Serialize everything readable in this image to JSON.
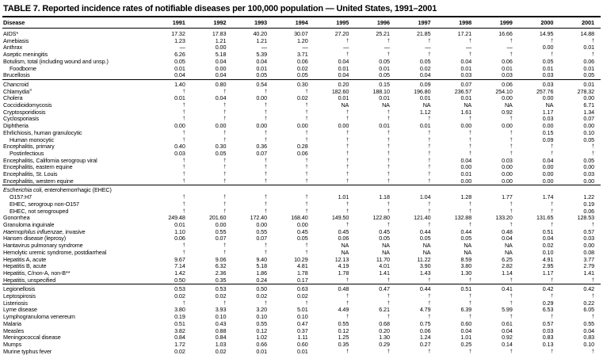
{
  "title": "TABLE 7. Reported incidence rates of notifiable diseases per 100,000 population — United States, 1991–2001",
  "columns": [
    "Disease",
    "1991",
    "1992",
    "1993",
    "1994",
    "1995",
    "1996",
    "1997",
    "1998",
    "1999",
    "2000",
    "2001"
  ],
  "symbols": {
    "not_notifiable": "†",
    "no_report": "—",
    "not_available": "NA"
  },
  "chart_data": {
    "type": "table",
    "title": "TABLE 7. Reported incidence rates of notifiable diseases per 100,000 population — United States, 1991–2001",
    "categories": [
      "1991",
      "1992",
      "1993",
      "1994",
      "1995",
      "1996",
      "1997",
      "1998",
      "1999",
      "2000",
      "2001"
    ]
  },
  "rows": [
    {
      "label": "AIDS*",
      "values": [
        "17.32",
        "17.83",
        "40.20",
        "30.07",
        "27.20",
        "25.21",
        "21.85",
        "17.21",
        "16.66",
        "14.95",
        "14.88"
      ]
    },
    {
      "label": "Amebiasis",
      "values": [
        "1.23",
        "1.21",
        "1.21",
        "1.20",
        "†",
        "†",
        "†",
        "†",
        "†",
        "†",
        "†"
      ]
    },
    {
      "label": "Anthrax",
      "values": [
        "—",
        "0.00",
        "—",
        "—",
        "—",
        "—",
        "—",
        "—",
        "—",
        "0.00",
        "0.01"
      ]
    },
    {
      "label": "Aseptic meningitis",
      "values": [
        "6.26",
        "5.18",
        "5.39",
        "3.71",
        "†",
        "†",
        "†",
        "†",
        "†",
        "†",
        "†"
      ]
    },
    {
      "label": "Botulism, total (including wound and unsp.)",
      "values": [
        "0.05",
        "0.04",
        "0.04",
        "0.06",
        "0.04",
        "0.05",
        "0.05",
        "0.04",
        "0.06",
        "0.05",
        "0.06"
      ]
    },
    {
      "label": "Foodborne",
      "indent": 1,
      "values": [
        "0.01",
        "0.00",
        "0.01",
        "0.02",
        "0.01",
        "0.01",
        "0.02",
        "0.01",
        "0.01",
        "0.01",
        "0.01"
      ]
    },
    {
      "label": "Brucellosis",
      "values": [
        "0.04",
        "0.04",
        "0.05",
        "0.05",
        "0.04",
        "0.05",
        "0.04",
        "0.03",
        "0.03",
        "0.03",
        "0.05"
      ]
    },
    {
      "label": "Chancroid",
      "rule": 1,
      "values": [
        "1.40",
        "0.80",
        "0.54",
        "0.30",
        "0.20",
        "0.15",
        "0.09",
        "0.07",
        "0.06",
        "0.03",
        "0.01"
      ]
    },
    {
      "label": "Chlamydia",
      "sup": "§",
      "values": [
        "†",
        "†",
        "†",
        "†",
        "182.60",
        "188.10",
        "196.80",
        "236.57",
        "254.10",
        "257.76",
        "278.32"
      ]
    },
    {
      "label": "Cholera",
      "values": [
        "0.01",
        "0.04",
        "0.00",
        "0.02",
        "0.01",
        "0.01",
        "0.01",
        "0.01",
        "0.00",
        "0.00",
        "0.00"
      ]
    },
    {
      "label": "Coccidioidomycosis",
      "values": [
        "†",
        "†",
        "†",
        "†",
        "NA",
        "NA",
        "NA",
        "NA",
        "NA",
        "NA",
        "6.71"
      ]
    },
    {
      "label": "Cryptosporidiosis",
      "values": [
        "†",
        "†",
        "†",
        "†",
        "†",
        "†",
        "1.12",
        "1.61",
        "0.92",
        "1.17",
        "1.34"
      ]
    },
    {
      "label": "Cyclosporiasis",
      "values": [
        "†",
        "†",
        "†",
        "†",
        "†",
        "†",
        "†",
        "†",
        "†",
        "0.03",
        "0.07"
      ]
    },
    {
      "label": "Diphtheria",
      "values": [
        "0.00",
        "0.00",
        "0.00",
        "0.00",
        "0.00",
        "0.01",
        "0.01",
        "0.00",
        "0.00",
        "0.00",
        "0.00"
      ]
    },
    {
      "label": "Ehrlichiosis, human granulocytic",
      "values": [
        "†",
        "†",
        "†",
        "†",
        "†",
        "†",
        "†",
        "†",
        "†",
        "0.15",
        "0.10"
      ]
    },
    {
      "label": "Human monocytic",
      "indent": 1,
      "values": [
        "†",
        "†",
        "†",
        "†",
        "†",
        "†",
        "†",
        "†",
        "†",
        "0.09",
        "0.05"
      ]
    },
    {
      "label": "Encephalitis, primary",
      "values": [
        "0.40",
        "0.30",
        "0.36",
        "0.28",
        "†",
        "†",
        "†",
        "†",
        "†",
        "†",
        "†"
      ]
    },
    {
      "label": "Postinfectious",
      "indent": 1,
      "values": [
        "0.03",
        "0.05",
        "0.07",
        "0.06",
        "†",
        "†",
        "†",
        "†",
        "†",
        "†",
        "†"
      ]
    },
    {
      "label": "Encephalitis, California serogroup viral",
      "values": [
        "†",
        "†",
        "†",
        "†",
        "†",
        "†",
        "†",
        "0.04",
        "0.03",
        "0.04",
        "0.05"
      ]
    },
    {
      "label": "Encephalitis, eastern equine",
      "values": [
        "†",
        "†",
        "†",
        "†",
        "†",
        "†",
        "†",
        "0.00",
        "0.00",
        "0.00",
        "0.00"
      ]
    },
    {
      "label": "Encephalitis, St. Louis",
      "values": [
        "†",
        "†",
        "†",
        "†",
        "†",
        "†",
        "†",
        "0.01",
        "0.00",
        "0.00",
        "0.03"
      ]
    },
    {
      "label": "Encephalitis, western equine",
      "values": [
        "†",
        "†",
        "†",
        "†",
        "†",
        "†",
        "†",
        "0.00",
        "0.00",
        "0.00",
        "0.00"
      ]
    },
    {
      "label": " enterohemorrhagic (EHEC)",
      "italic": "Escherichia coli,",
      "rule": 1,
      "values": [
        "",
        "",
        "",
        "",
        "",
        "",
        "",
        "",
        "",
        "",
        ""
      ]
    },
    {
      "label": "O157:H7",
      "indent": 1,
      "values": [
        "†",
        "†",
        "†",
        "†",
        "1.01",
        "1.18",
        "1.04",
        "1.28",
        "1.77",
        "1.74",
        "1.22"
      ]
    },
    {
      "label": "EHEC, serogroup non-O157",
      "indent": 1,
      "values": [
        "†",
        "†",
        "†",
        "†",
        "†",
        "†",
        "†",
        "†",
        "†",
        "†",
        "0.19"
      ]
    },
    {
      "label": "EHEC, not serogrouped",
      "indent": 1,
      "values": [
        "†",
        "†",
        "†",
        "†",
        "†",
        "†",
        "†",
        "†",
        "†",
        "†",
        "0.06"
      ]
    },
    {
      "label": "Gonorrhea",
      "values": [
        "249.48",
        "201.60",
        "172.40",
        "168.40",
        "149.50",
        "122.80",
        "121.40",
        "132.88",
        "133.20",
        "131.65",
        "128.53"
      ]
    },
    {
      "label": "Granuloma inguinale",
      "values": [
        "0.01",
        "0.00",
        "0.00",
        "0.00",
        "†",
        "†",
        "†",
        "†",
        "†",
        "†",
        "†"
      ]
    },
    {
      "label": " invasive",
      "italic": "Haemophilus influenzae,",
      "values": [
        "1.10",
        "0.55",
        "0.55",
        "0.45",
        "0.45",
        "0.45",
        "0.44",
        "0.44",
        "0.48",
        "0.51",
        "0.57"
      ]
    },
    {
      "label": "Hansen disease (leprosy)",
      "values": [
        "0.06",
        "0.07",
        "0.07",
        "0.05",
        "0.06",
        "0.05",
        "0.05",
        "0.05",
        "0.04",
        "0.04",
        "0.03"
      ]
    },
    {
      "label": "Hantavirus pulmonary syndrome",
      "values": [
        "†",
        "†",
        "†",
        "†",
        "NA",
        "NA",
        "NA",
        "NA",
        "NA",
        "0.02",
        "0.00"
      ]
    },
    {
      "label": "Hemolytic uremic syndrome, postdiarrheal",
      "values": [
        "†",
        "†",
        "†",
        "†",
        "NA",
        "NA",
        "NA",
        "NA",
        "NA",
        "0.10",
        "0.08"
      ]
    },
    {
      "label": "Hepatitis A, acute",
      "values": [
        "9.67",
        "9.06",
        "9.40",
        "10.29",
        "12.13",
        "11.70",
        "11.22",
        "8.59",
        "6.25",
        "4.91",
        "3.77"
      ]
    },
    {
      "label": "Hepatitis B, acute",
      "values": [
        "7.14",
        "6.32",
        "5.18",
        "4.81",
        "4.19",
        "4.01",
        "3.90",
        "3.80",
        "2.82",
        "2.95",
        "2.79"
      ]
    },
    {
      "label": "Hepatitis, C/non-A, non-B**",
      "values": [
        "1.42",
        "2.36",
        "1.86",
        "1.78",
        "1.78",
        "1.41",
        "1.43",
        "1.30",
        "1.14",
        "1.17",
        "1.41"
      ]
    },
    {
      "label": "Hepatitis, unspecified",
      "values": [
        "0.50",
        "0.35",
        "0.24",
        "0.17",
        "†",
        "†",
        "†",
        "†",
        "†",
        "†",
        "†"
      ]
    },
    {
      "label": "Legionellosis",
      "rule": 1,
      "values": [
        "0.53",
        "0.53",
        "0.50",
        "0.63",
        "0.48",
        "0.47",
        "0.44",
        "0.51",
        "0.41",
        "0.42",
        "0.42"
      ]
    },
    {
      "label": "Leptospirosis",
      "values": [
        "0.02",
        "0.02",
        "0.02",
        "0.02",
        "†",
        "†",
        "†",
        "†",
        "†",
        "†",
        "†"
      ]
    },
    {
      "label": "Listeriosis",
      "values": [
        "†",
        "†",
        "†",
        "†",
        "†",
        "†",
        "†",
        "†",
        "†",
        "0.29",
        "0.22"
      ]
    },
    {
      "label": "Lyme disease",
      "values": [
        "3.80",
        "3.93",
        "3.20",
        "5.01",
        "4.49",
        "6.21",
        "4.79",
        "6.39",
        "5.99",
        "6.53",
        "6.05"
      ]
    },
    {
      "label": "Lymphogranuloma venereum",
      "values": [
        "0.19",
        "0.10",
        "0.10",
        "0.10",
        "†",
        "†",
        "†",
        "†",
        "†",
        "†",
        "†"
      ]
    },
    {
      "label": "Malaria",
      "values": [
        "0.51",
        "0.43",
        "0.55",
        "0.47",
        "0.55",
        "0.68",
        "0.75",
        "0.60",
        "0.61",
        "0.57",
        "0.55"
      ]
    },
    {
      "label": "Measles",
      "values": [
        "3.82",
        "0.88",
        "0.12",
        "0.37",
        "0.12",
        "0.20",
        "0.06",
        "0.04",
        "0.04",
        "0.03",
        "0.04"
      ]
    },
    {
      "label": "Meningococcal disease",
      "values": [
        "0.84",
        "0.84",
        "1.02",
        "1.11",
        "1.25",
        "1.30",
        "1.24",
        "1.01",
        "0.92",
        "0.83",
        "0.83"
      ]
    },
    {
      "label": "Mumps",
      "values": [
        "1.72",
        "1.03",
        "0.66",
        "0.60",
        "0.35",
        "0.29",
        "0.27",
        "0.25",
        "0.14",
        "0.13",
        "0.10"
      ]
    },
    {
      "label": "Murine typhus fever",
      "values": [
        "0.02",
        "0.02",
        "0.01",
        "0.01",
        "†",
        "†",
        "†",
        "†",
        "†",
        "†",
        "†"
      ]
    }
  ]
}
